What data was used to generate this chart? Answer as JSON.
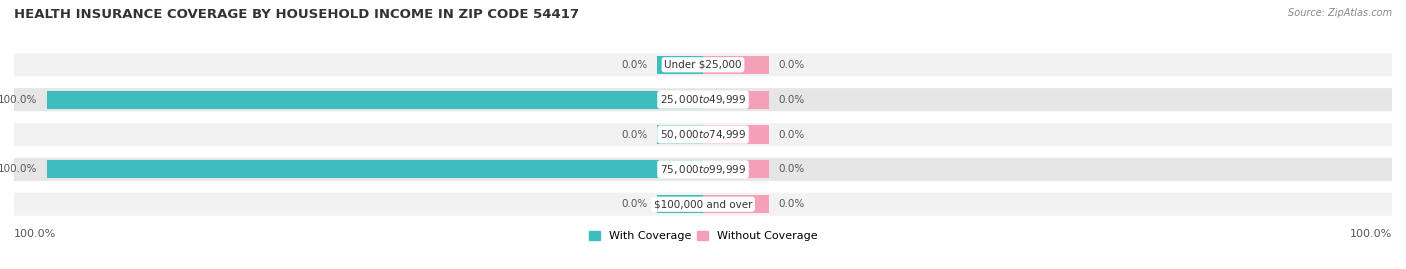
{
  "title": "HEALTH INSURANCE COVERAGE BY HOUSEHOLD INCOME IN ZIP CODE 54417",
  "source": "Source: ZipAtlas.com",
  "categories": [
    "Under $25,000",
    "$25,000 to $49,999",
    "$50,000 to $74,999",
    "$75,000 to $99,999",
    "$100,000 and over"
  ],
  "with_coverage": [
    0.0,
    100.0,
    0.0,
    100.0,
    0.0
  ],
  "without_coverage": [
    0.0,
    0.0,
    0.0,
    0.0,
    0.0
  ],
  "color_with": "#3cbcbc",
  "color_without": "#f4a0b8",
  "bar_height": 0.52,
  "figsize": [
    14.06,
    2.69
  ],
  "dpi": 100,
  "title_fontsize": 9.5,
  "category_label_fontsize": 7.5,
  "value_label_fontsize": 7.5,
  "legend_fontsize": 8,
  "axis_label_fontsize": 8,
  "stub_with": 7.0,
  "stub_without": 10.0,
  "xlim": [
    -105,
    105
  ],
  "row_colors": [
    "#f2f2f2",
    "#e6e6e6",
    "#f2f2f2",
    "#e6e6e6",
    "#f2f2f2"
  ]
}
